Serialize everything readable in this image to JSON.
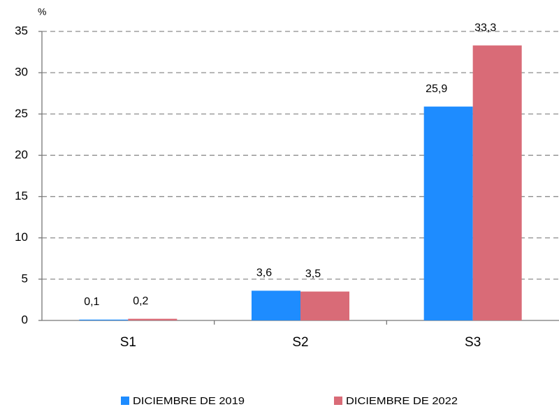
{
  "chart_data": {
    "type": "bar",
    "y_label": "%",
    "categories": [
      "S1",
      "S2",
      "S3"
    ],
    "series": [
      {
        "name": "DICIEMBRE DE 2019",
        "color": "#1e8cff",
        "values": [
          0.1,
          3.6,
          25.9
        ],
        "value_labels": [
          "0,1",
          "3,6",
          "25,9"
        ]
      },
      {
        "name": "DICIEMBRE DE 2022",
        "color": "#d96b77",
        "values": [
          0.2,
          3.5,
          33.3
        ],
        "value_labels": [
          "0,2",
          "3,5",
          "33,3"
        ]
      }
    ],
    "ylim": [
      0,
      35
    ],
    "yticks": [
      0,
      5,
      10,
      15,
      20,
      25,
      30,
      35
    ],
    "grid": true,
    "legend": "bottom"
  }
}
